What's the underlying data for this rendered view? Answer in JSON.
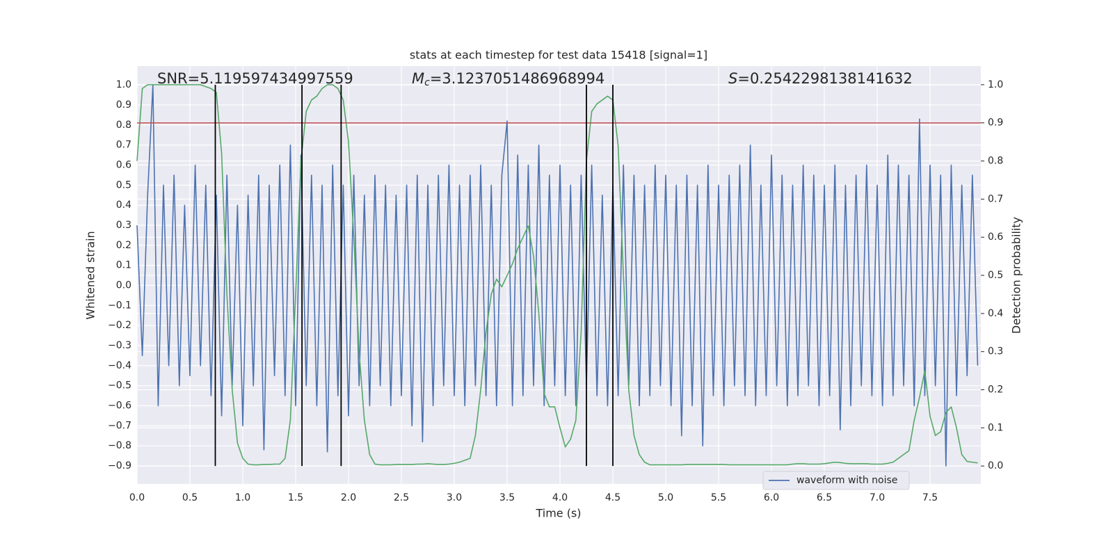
{
  "chart_data": {
    "type": "line",
    "title": "stats at each timestep for test data 15418 [signal=1]",
    "xlabel": "Time (s)",
    "ylabel": "Whitened strain",
    "y2label": "Detection probability",
    "annotations": [
      {
        "text": "SNR=5.119597434997559"
      },
      {
        "symbol": "M",
        "subscript": "c",
        "text": "=3.1237051486968994"
      },
      {
        "symbol": "S",
        "text": "=0.2542298138141632"
      }
    ],
    "x": [
      0.0,
      0.05,
      0.1,
      0.15,
      0.2,
      0.25,
      0.3,
      0.35,
      0.4,
      0.45,
      0.5,
      0.55,
      0.6,
      0.65,
      0.7,
      0.75,
      0.8,
      0.85,
      0.9,
      0.95,
      1.0,
      1.05,
      1.1,
      1.15,
      1.2,
      1.25,
      1.3,
      1.35,
      1.4,
      1.45,
      1.5,
      1.55,
      1.6,
      1.65,
      1.7,
      1.75,
      1.8,
      1.85,
      1.9,
      1.95,
      2.0,
      2.05,
      2.1,
      2.15,
      2.2,
      2.25,
      2.3,
      2.35,
      2.4,
      2.45,
      2.5,
      2.55,
      2.6,
      2.65,
      2.7,
      2.75,
      2.8,
      2.85,
      2.9,
      2.95,
      3.0,
      3.05,
      3.1,
      3.15,
      3.2,
      3.25,
      3.3,
      3.35,
      3.4,
      3.45,
      3.5,
      3.55,
      3.6,
      3.65,
      3.7,
      3.75,
      3.8,
      3.85,
      3.9,
      3.95,
      4.0,
      4.05,
      4.1,
      4.15,
      4.2,
      4.25,
      4.3,
      4.35,
      4.4,
      4.45,
      4.5,
      4.55,
      4.6,
      4.65,
      4.7,
      4.75,
      4.8,
      4.85,
      4.9,
      4.95,
      5.0,
      5.05,
      5.1,
      5.15,
      5.2,
      5.25,
      5.3,
      5.35,
      5.4,
      5.45,
      5.5,
      5.55,
      5.6,
      5.65,
      5.7,
      5.75,
      5.8,
      5.85,
      5.9,
      5.95,
      6.0,
      6.05,
      6.1,
      6.15,
      6.2,
      6.25,
      6.3,
      6.35,
      6.4,
      6.45,
      6.5,
      6.55,
      6.6,
      6.65,
      6.7,
      6.75,
      6.8,
      6.85,
      6.9,
      6.95,
      7.0,
      7.05,
      7.1,
      7.15,
      7.2,
      7.25,
      7.3,
      7.35,
      7.4,
      7.45,
      7.5,
      7.55,
      7.6,
      7.65,
      7.7,
      7.75,
      7.8,
      7.85,
      7.9,
      7.95
    ],
    "series": [
      {
        "name": "waveform with noise",
        "color": "#4c72b0",
        "axis": "y",
        "values": [
          0.3,
          -0.35,
          0.45,
          1.0,
          -0.6,
          0.5,
          -0.4,
          0.55,
          -0.5,
          0.4,
          -0.45,
          0.6,
          -0.4,
          0.5,
          -0.55,
          0.45,
          -0.65,
          0.55,
          -0.5,
          0.4,
          -0.7,
          0.45,
          -0.5,
          0.55,
          -0.82,
          0.5,
          -0.45,
          0.6,
          -0.55,
          0.7,
          -0.6,
          0.65,
          -0.5,
          0.55,
          -0.6,
          0.5,
          -0.83,
          0.6,
          -0.55,
          0.5,
          -0.65,
          0.55,
          -0.5,
          0.45,
          -0.6,
          0.55,
          -0.5,
          0.5,
          -0.6,
          0.45,
          -0.55,
          0.5,
          -0.7,
          0.55,
          -0.78,
          0.5,
          -0.6,
          0.55,
          -0.5,
          0.6,
          -0.55,
          0.5,
          -0.6,
          0.55,
          -0.5,
          0.6,
          -0.55,
          0.5,
          -0.6,
          0.55,
          0.82,
          -0.6,
          0.65,
          -0.55,
          0.6,
          -0.5,
          0.7,
          -0.6,
          0.55,
          -0.5,
          0.6,
          -0.55,
          0.5,
          -0.6,
          0.55,
          -0.5,
          0.6,
          -0.55,
          0.45,
          -0.6,
          0.5,
          -0.55,
          0.6,
          -0.5,
          0.55,
          -0.6,
          0.5,
          -0.55,
          0.6,
          -0.5,
          0.55,
          -0.6,
          0.5,
          -0.75,
          0.55,
          -0.6,
          0.5,
          -0.8,
          0.6,
          -0.55,
          0.5,
          -0.6,
          0.55,
          -0.5,
          0.6,
          -0.55,
          0.7,
          -0.6,
          0.5,
          -0.55,
          0.65,
          -0.5,
          0.55,
          -0.6,
          0.5,
          -0.55,
          0.6,
          -0.5,
          0.55,
          -0.6,
          0.5,
          -0.55,
          0.6,
          -0.72,
          0.5,
          -0.6,
          0.55,
          -0.5,
          0.6,
          -0.55,
          0.5,
          -0.6,
          0.65,
          -0.55,
          0.6,
          -0.5,
          0.55,
          -0.6,
          0.83,
          -0.55,
          0.6,
          -0.5,
          0.55,
          -0.9,
          0.6,
          -0.55,
          0.5,
          -0.45,
          0.55,
          -0.4
        ]
      },
      {
        "color": "#55a868",
        "axis": "y2",
        "values": [
          0.8,
          0.99,
          1.0,
          1.0,
          1.0,
          1.0,
          1.0,
          1.0,
          1.0,
          1.0,
          1.0,
          1.0,
          1.0,
          0.995,
          0.99,
          0.98,
          0.82,
          0.45,
          0.2,
          0.06,
          0.02,
          0.005,
          0.003,
          0.003,
          0.004,
          0.004,
          0.005,
          0.005,
          0.02,
          0.12,
          0.45,
          0.8,
          0.93,
          0.96,
          0.97,
          0.99,
          1.0,
          1.0,
          0.99,
          0.96,
          0.85,
          0.6,
          0.3,
          0.12,
          0.03,
          0.005,
          0.003,
          0.003,
          0.003,
          0.004,
          0.004,
          0.004,
          0.004,
          0.005,
          0.005,
          0.006,
          0.005,
          0.004,
          0.004,
          0.005,
          0.007,
          0.01,
          0.015,
          0.02,
          0.08,
          0.2,
          0.35,
          0.45,
          0.49,
          0.47,
          0.5,
          0.53,
          0.57,
          0.6,
          0.63,
          0.55,
          0.4,
          0.19,
          0.155,
          0.155,
          0.1,
          0.05,
          0.07,
          0.12,
          0.35,
          0.8,
          0.93,
          0.95,
          0.96,
          0.97,
          0.96,
          0.84,
          0.5,
          0.2,
          0.08,
          0.03,
          0.01,
          0.003,
          0.003,
          0.003,
          0.003,
          0.003,
          0.003,
          0.003,
          0.004,
          0.004,
          0.004,
          0.004,
          0.004,
          0.004,
          0.004,
          0.004,
          0.003,
          0.003,
          0.003,
          0.003,
          0.003,
          0.003,
          0.003,
          0.003,
          0.003,
          0.003,
          0.003,
          0.003,
          0.005,
          0.006,
          0.006,
          0.005,
          0.005,
          0.005,
          0.006,
          0.008,
          0.01,
          0.009,
          0.007,
          0.006,
          0.006,
          0.006,
          0.006,
          0.005,
          0.005,
          0.005,
          0.007,
          0.01,
          0.02,
          0.03,
          0.04,
          0.12,
          0.18,
          0.25,
          0.13,
          0.08,
          0.09,
          0.14,
          0.155,
          0.1,
          0.03,
          0.012,
          0.01,
          0.008
        ]
      }
    ],
    "vlines": {
      "x": [
        0.74,
        1.56,
        1.93,
        4.25,
        4.5
      ],
      "y2": [
        0,
        1
      ],
      "color": "#000000"
    },
    "hlines": [
      {
        "y": 0.9,
        "axis": "y2",
        "color": "#c44e52"
      }
    ],
    "xlim": [
      0,
      7.98
    ],
    "ylim": [
      -0.99,
      1.094
    ],
    "y2lim": [
      -0.047,
      1.049
    ],
    "xticks": [
      {
        "value": 0,
        "label": "0.0"
      },
      0.5,
      {
        "value": 1,
        "label": "1.0"
      },
      1.5,
      {
        "value": 2,
        "label": "2.0"
      },
      2.5,
      {
        "value": 3,
        "label": "3.0"
      },
      3.5,
      {
        "value": 4,
        "label": "4.0"
      },
      4.5,
      {
        "value": 5,
        "label": "5.0"
      },
      5.5,
      {
        "value": 6,
        "label": "6.0"
      },
      6.5,
      {
        "value": 7,
        "label": "7.0"
      },
      7.5
    ],
    "yticks": [
      {
        "value": -0.9,
        "label": "−0.9"
      },
      {
        "value": -0.8,
        "label": "−0.8"
      },
      {
        "value": -0.7,
        "label": "−0.7"
      },
      {
        "value": -0.6,
        "label": "−0.6"
      },
      {
        "value": -0.5,
        "label": "−0.5"
      },
      {
        "value": -0.4,
        "label": "−0.4"
      },
      {
        "value": -0.3,
        "label": "−0.3"
      },
      {
        "value": -0.2,
        "label": "−0.2"
      },
      {
        "value": -0.1,
        "label": "−0.1"
      },
      {
        "value": 0,
        "label": "0.0"
      },
      0.1,
      0.2,
      0.3,
      0.4,
      0.5,
      0.6,
      0.7,
      0.8,
      0.9,
      {
        "value": 1,
        "label": "1.0"
      }
    ],
    "y2ticks": [
      {
        "value": 0,
        "label": "0.0"
      },
      0.1,
      0.2,
      0.3,
      0.4,
      0.5,
      0.6,
      0.7,
      0.8,
      0.9,
      {
        "value": 1,
        "label": "1.0"
      }
    ],
    "grid": true,
    "background": "#eaeaf2",
    "legend": "lower right"
  }
}
